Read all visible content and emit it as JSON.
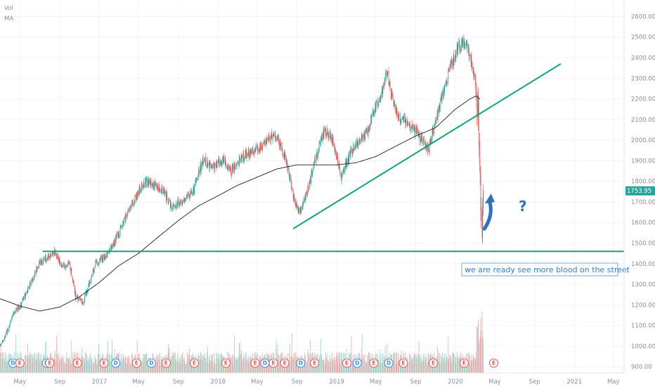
{
  "legend": {
    "vol": "Vol",
    "ma": "MA"
  },
  "annotation": {
    "text": "we are ready see more blood on the street",
    "question": "?"
  },
  "colors": {
    "up": "#26a69a",
    "down": "#ef5350",
    "vol_up": "#9fd6cf",
    "vol_down": "#f4a7a5",
    "ma": "#1f1f1f",
    "trendline": "#12a37d",
    "arrow": "#2f6fc0",
    "annotation": "#2e7dd0",
    "event_earnings": "#e05a5a",
    "event_dividend": "#3b8ad8",
    "price_label_bg": "#26a69a"
  },
  "chart_data": {
    "type": "candlestick",
    "ylim": [
      870,
      2680
    ],
    "y_ticks": [
      "900.00",
      "1000.00",
      "1100.00",
      "1200.00",
      "1300.00",
      "1400.00",
      "1500.00",
      "1600.00",
      "1700.00",
      "1800.00",
      "1900.00",
      "2000.00",
      "2100.00",
      "2200.00",
      "2300.00",
      "2400.00",
      "2500.00",
      "2600.00"
    ],
    "x_ticks": [
      "May",
      "Sep",
      "2017",
      "May",
      "Sep",
      "2018",
      "May",
      "Sep",
      "2019",
      "May",
      "Sep",
      "2020",
      "May",
      "Sep",
      "2021",
      "May"
    ],
    "last_price": 1753.95,
    "last_price_label": "1753.95",
    "price_anchors": [
      [
        "2016-03-01",
        1000
      ],
      [
        "2016-03-20",
        1060
      ],
      [
        "2016-04-10",
        1150
      ],
      [
        "2016-05-01",
        1190
      ],
      [
        "2016-06-01",
        1300
      ],
      [
        "2016-07-01",
        1400
      ],
      [
        "2016-08-01",
        1440
      ],
      [
        "2016-08-15",
        1460
      ],
      [
        "2016-09-10",
        1380
      ],
      [
        "2016-10-01",
        1400
      ],
      [
        "2016-10-20",
        1240
      ],
      [
        "2016-11-10",
        1210
      ],
      [
        "2016-12-01",
        1300
      ],
      [
        "2016-12-20",
        1400
      ],
      [
        "2017-01-15",
        1430
      ],
      [
        "2017-02-15",
        1500
      ],
      [
        "2017-03-15",
        1600
      ],
      [
        "2017-04-15",
        1700
      ],
      [
        "2017-05-20",
        1800
      ],
      [
        "2017-06-20",
        1780
      ],
      [
        "2017-07-15",
        1760
      ],
      [
        "2017-08-10",
        1680
      ],
      [
        "2017-09-15",
        1700
      ],
      [
        "2017-10-15",
        1750
      ],
      [
        "2017-11-15",
        1900
      ],
      [
        "2017-12-15",
        1870
      ],
      [
        "2018-01-20",
        1900
      ],
      [
        "2018-02-10",
        1850
      ],
      [
        "2018-03-20",
        1920
      ],
      [
        "2018-04-25",
        1950
      ],
      [
        "2018-05-25",
        1980
      ],
      [
        "2018-06-20",
        2030
      ],
      [
        "2018-07-10",
        1990
      ],
      [
        "2018-08-05",
        1860
      ],
      [
        "2018-08-25",
        1700
      ],
      [
        "2018-09-10",
        1650
      ],
      [
        "2018-10-05",
        1760
      ],
      [
        "2018-10-25",
        1900
      ],
      [
        "2018-11-25",
        2050
      ],
      [
        "2018-12-20",
        2000
      ],
      [
        "2019-01-15",
        1820
      ],
      [
        "2019-02-15",
        1950
      ],
      [
        "2019-03-15",
        2000
      ],
      [
        "2019-04-10",
        2050
      ],
      [
        "2019-04-25",
        2150
      ],
      [
        "2019-05-15",
        2200
      ],
      [
        "2019-06-05",
        2330
      ],
      [
        "2019-06-20",
        2200
      ],
      [
        "2019-07-15",
        2100
      ],
      [
        "2019-08-15",
        2080
      ],
      [
        "2019-09-20",
        2000
      ],
      [
        "2019-10-10",
        1960
      ],
      [
        "2019-10-25",
        2050
      ],
      [
        "2019-11-20",
        2200
      ],
      [
        "2019-12-15",
        2350
      ],
      [
        "2020-01-10",
        2450
      ],
      [
        "2020-01-28",
        2480
      ],
      [
        "2020-02-10",
        2430
      ],
      [
        "2020-02-25",
        2340
      ],
      [
        "2020-03-05",
        2240
      ],
      [
        "2020-03-12",
        2120
      ],
      [
        "2020-03-16",
        1880
      ],
      [
        "2020-03-19",
        1690
      ],
      [
        "2020-03-23",
        1520
      ],
      [
        "2020-03-27",
        1760
      ]
    ],
    "ma_anchors": [
      [
        "2016-03-01",
        1230
      ],
      [
        "2016-05-01",
        1195
      ],
      [
        "2016-07-01",
        1170
      ],
      [
        "2016-09-01",
        1190
      ],
      [
        "2016-11-01",
        1240
      ],
      [
        "2017-01-01",
        1310
      ],
      [
        "2017-03-01",
        1390
      ],
      [
        "2017-05-01",
        1450
      ],
      [
        "2017-07-01",
        1530
      ],
      [
        "2017-09-01",
        1610
      ],
      [
        "2017-11-01",
        1680
      ],
      [
        "2018-01-01",
        1730
      ],
      [
        "2018-03-01",
        1780
      ],
      [
        "2018-05-01",
        1820
      ],
      [
        "2018-07-01",
        1860
      ],
      [
        "2018-09-01",
        1880
      ],
      [
        "2018-11-01",
        1880
      ],
      [
        "2019-01-01",
        1880
      ],
      [
        "2019-03-01",
        1890
      ],
      [
        "2019-05-01",
        1920
      ],
      [
        "2019-07-01",
        1970
      ],
      [
        "2019-09-01",
        2020
      ],
      [
        "2019-11-01",
        2060
      ],
      [
        "2020-01-01",
        2150
      ],
      [
        "2020-02-15",
        2200
      ],
      [
        "2020-03-05",
        2215
      ],
      [
        "2020-03-16",
        2200
      ]
    ],
    "lines": [
      {
        "type": "horizontal",
        "y": 1460
      },
      {
        "type": "trend",
        "from": [
          "2018-08-20",
          1570
        ],
        "to": [
          "2020-11-20",
          2370
        ]
      }
    ],
    "arrow": {
      "from": [
        "2020-04-08",
        1590
      ],
      "to": [
        "2020-04-20",
        1720
      ]
    },
    "events": [
      [
        "2016-04-10",
        "D"
      ],
      [
        "2016-05-01",
        "E"
      ],
      [
        "2016-07-22",
        "D"
      ],
      [
        "2016-08-01",
        "E"
      ],
      [
        "2016-10-25",
        "E"
      ],
      [
        "2017-01-15",
        "E"
      ],
      [
        "2017-02-20",
        "D"
      ],
      [
        "2017-04-25",
        "E"
      ],
      [
        "2017-06-10",
        "D"
      ],
      [
        "2017-07-25",
        "E"
      ],
      [
        "2017-10-20",
        "E"
      ],
      [
        "2018-01-25",
        "E"
      ],
      [
        "2018-04-25",
        "E"
      ],
      [
        "2018-05-25",
        "D"
      ],
      [
        "2018-06-20",
        "E"
      ],
      [
        "2018-07-25",
        "E"
      ],
      [
        "2018-09-12",
        "D"
      ],
      [
        "2018-10-25",
        "E"
      ],
      [
        "2019-02-01",
        "E"
      ],
      [
        "2019-03-05",
        "D"
      ],
      [
        "2019-04-25",
        "E"
      ],
      [
        "2019-06-10",
        "D"
      ],
      [
        "2019-07-25",
        "E"
      ],
      [
        "2019-10-25",
        "E"
      ],
      [
        "2020-01-28",
        "E"
      ],
      [
        "2020-04-28",
        "E"
      ]
    ]
  }
}
